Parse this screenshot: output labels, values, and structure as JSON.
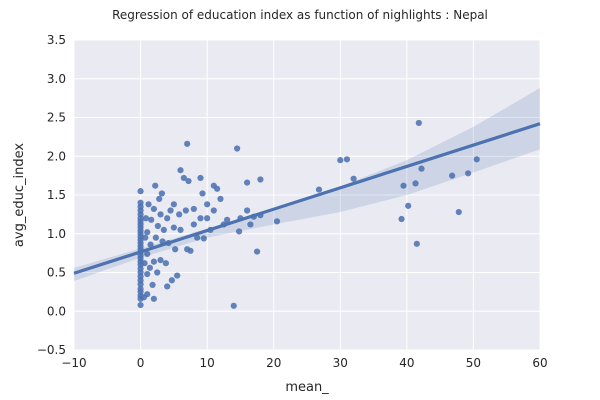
{
  "chart_data": {
    "type": "scatter",
    "title": "Regression of education index as function of nighlights : Nepal",
    "xlabel": "mean_",
    "ylabel": "avg_educ_index",
    "xlim": [
      -10,
      60
    ],
    "ylim": [
      -0.5,
      3.5
    ],
    "x_ticks": [
      "−10",
      "0",
      "10",
      "20",
      "30",
      "40",
      "50",
      "60"
    ],
    "y_ticks": [
      "−0.5",
      "0.0",
      "0.5",
      "1.0",
      "1.5",
      "2.0",
      "2.5",
      "3.0",
      "3.5"
    ],
    "grid": true,
    "colors": {
      "background": "#EAEAF2",
      "points": "#4C72B0",
      "line": "#4C72B0",
      "band": "#4C72B0",
      "grid": "#FFFFFF"
    },
    "regression_line": {
      "x": [
        -10,
        60
      ],
      "y": [
        0.49,
        2.42
      ]
    },
    "confidence_band": {
      "x": [
        -10,
        0,
        10,
        20,
        30,
        40,
        50,
        60
      ],
      "upper": [
        0.56,
        0.81,
        1.07,
        1.3,
        1.61,
        1.95,
        2.38,
        2.88
      ],
      "lower": [
        0.39,
        0.69,
        0.95,
        1.12,
        1.28,
        1.5,
        1.79,
        2.09
      ]
    },
    "points": [
      {
        "x": 0,
        "y": 0.08
      },
      {
        "x": 0,
        "y": 0.16
      },
      {
        "x": 0,
        "y": 0.2
      },
      {
        "x": 0,
        "y": 0.25
      },
      {
        "x": 0,
        "y": 0.29
      },
      {
        "x": 0,
        "y": 0.35
      },
      {
        "x": 0,
        "y": 0.4
      },
      {
        "x": 0,
        "y": 0.45
      },
      {
        "x": 0,
        "y": 0.5
      },
      {
        "x": 0,
        "y": 0.55
      },
      {
        "x": 0,
        "y": 0.6
      },
      {
        "x": 0,
        "y": 0.64
      },
      {
        "x": 0,
        "y": 0.68
      },
      {
        "x": 0,
        "y": 0.72
      },
      {
        "x": 0,
        "y": 0.76
      },
      {
        "x": 0,
        "y": 0.8
      },
      {
        "x": 0,
        "y": 0.84
      },
      {
        "x": 0,
        "y": 0.88
      },
      {
        "x": 0,
        "y": 0.92
      },
      {
        "x": 0,
        "y": 0.96
      },
      {
        "x": 0,
        "y": 1.0
      },
      {
        "x": 0,
        "y": 1.04
      },
      {
        "x": 0,
        "y": 1.08
      },
      {
        "x": 0,
        "y": 1.12
      },
      {
        "x": 0,
        "y": 1.16
      },
      {
        "x": 0,
        "y": 1.2
      },
      {
        "x": 0,
        "y": 1.25
      },
      {
        "x": 0,
        "y": 1.3
      },
      {
        "x": 0,
        "y": 1.35
      },
      {
        "x": 0,
        "y": 1.4
      },
      {
        "x": 0,
        "y": 1.55
      },
      {
        "x": 0.5,
        "y": 0.18
      },
      {
        "x": 0.6,
        "y": 0.62
      },
      {
        "x": 0.7,
        "y": 0.95
      },
      {
        "x": 0.8,
        "y": 1.2
      },
      {
        "x": 1,
        "y": 0.22
      },
      {
        "x": 1,
        "y": 0.48
      },
      {
        "x": 1,
        "y": 0.74
      },
      {
        "x": 1,
        "y": 1.02
      },
      {
        "x": 1.2,
        "y": 1.38
      },
      {
        "x": 1.4,
        "y": 0.56
      },
      {
        "x": 1.5,
        "y": 0.86
      },
      {
        "x": 1.6,
        "y": 1.18
      },
      {
        "x": 1.8,
        "y": 0.34
      },
      {
        "x": 2,
        "y": 0.16
      },
      {
        "x": 2,
        "y": 0.64
      },
      {
        "x": 2,
        "y": 1.32
      },
      {
        "x": 2.2,
        "y": 1.62
      },
      {
        "x": 2.3,
        "y": 0.95
      },
      {
        "x": 2.5,
        "y": 0.5
      },
      {
        "x": 2.6,
        "y": 1.1
      },
      {
        "x": 2.8,
        "y": 1.45
      },
      {
        "x": 3,
        "y": 0.66
      },
      {
        "x": 3,
        "y": 1.25
      },
      {
        "x": 3.2,
        "y": 1.52
      },
      {
        "x": 3.3,
        "y": 0.9
      },
      {
        "x": 3.5,
        "y": 1.05
      },
      {
        "x": 3.8,
        "y": 0.62
      },
      {
        "x": 4,
        "y": 0.32
      },
      {
        "x": 4,
        "y": 1.2
      },
      {
        "x": 4.2,
        "y": 0.88
      },
      {
        "x": 4.5,
        "y": 1.3
      },
      {
        "x": 4.7,
        "y": 0.4
      },
      {
        "x": 5,
        "y": 1.08
      },
      {
        "x": 5,
        "y": 1.38
      },
      {
        "x": 5.2,
        "y": 0.8
      },
      {
        "x": 5.5,
        "y": 0.46
      },
      {
        "x": 5.8,
        "y": 1.25
      },
      {
        "x": 6,
        "y": 1.82
      },
      {
        "x": 6,
        "y": 1.05
      },
      {
        "x": 6.5,
        "y": 1.72
      },
      {
        "x": 6.8,
        "y": 1.3
      },
      {
        "x": 7,
        "y": 2.16
      },
      {
        "x": 7,
        "y": 0.8
      },
      {
        "x": 7.2,
        "y": 1.68
      },
      {
        "x": 7.5,
        "y": 0.78
      },
      {
        "x": 8,
        "y": 1.32
      },
      {
        "x": 8,
        "y": 1.12
      },
      {
        "x": 8.5,
        "y": 0.95
      },
      {
        "x": 9,
        "y": 1.72
      },
      {
        "x": 9,
        "y": 1.2
      },
      {
        "x": 9.3,
        "y": 1.52
      },
      {
        "x": 9.5,
        "y": 0.94
      },
      {
        "x": 10,
        "y": 1.38
      },
      {
        "x": 10,
        "y": 1.2
      },
      {
        "x": 10.5,
        "y": 1.05
      },
      {
        "x": 11,
        "y": 1.62
      },
      {
        "x": 11,
        "y": 1.3
      },
      {
        "x": 11.5,
        "y": 1.58
      },
      {
        "x": 12,
        "y": 1.45
      },
      {
        "x": 12.5,
        "y": 1.12
      },
      {
        "x": 13,
        "y": 1.18
      },
      {
        "x": 14,
        "y": 0.07
      },
      {
        "x": 14.5,
        "y": 2.1
      },
      {
        "x": 14.8,
        "y": 1.03
      },
      {
        "x": 15,
        "y": 1.2
      },
      {
        "x": 16,
        "y": 1.66
      },
      {
        "x": 16,
        "y": 1.3
      },
      {
        "x": 16.5,
        "y": 1.12
      },
      {
        "x": 17,
        "y": 1.22
      },
      {
        "x": 17.5,
        "y": 0.77
      },
      {
        "x": 18,
        "y": 1.7
      },
      {
        "x": 18,
        "y": 1.24
      },
      {
        "x": 20.5,
        "y": 1.16
      },
      {
        "x": 26.8,
        "y": 1.57
      },
      {
        "x": 30,
        "y": 1.95
      },
      {
        "x": 31,
        "y": 1.96
      },
      {
        "x": 32,
        "y": 1.71
      },
      {
        "x": 39.2,
        "y": 1.19
      },
      {
        "x": 39.5,
        "y": 1.62
      },
      {
        "x": 40.2,
        "y": 1.36
      },
      {
        "x": 41.3,
        "y": 1.65
      },
      {
        "x": 41.5,
        "y": 0.87
      },
      {
        "x": 41.8,
        "y": 2.43
      },
      {
        "x": 42.2,
        "y": 1.84
      },
      {
        "x": 46.8,
        "y": 1.75
      },
      {
        "x": 47.8,
        "y": 1.28
      },
      {
        "x": 49.2,
        "y": 1.78
      },
      {
        "x": 50.5,
        "y": 1.96
      }
    ]
  }
}
